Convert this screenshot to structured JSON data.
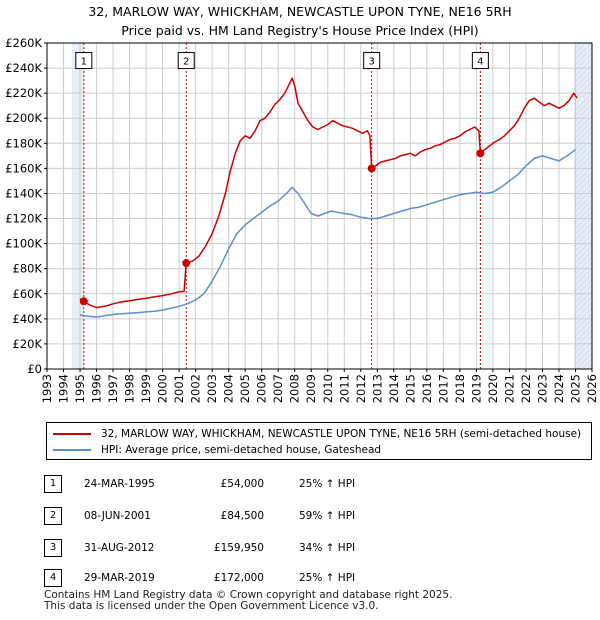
{
  "title_line1": "32, MARLOW WAY, WHICKHAM, NEWCASTLE UPON TYNE, NE16 5RH",
  "title_line2": "Price paid vs. HM Land Registry's House Price Index (HPI)",
  "colors": {
    "property": "#cc0000",
    "hpi": "#5b8fcf",
    "shade": "#e8eef8",
    "grid": "#cccccc"
  },
  "chart_data": {
    "type": "line",
    "xlim": [
      1993,
      2026
    ],
    "ylim": [
      0,
      260000
    ],
    "x_ticks": [
      "1993",
      "1994",
      "1995",
      "1996",
      "1997",
      "1998",
      "1999",
      "2000",
      "2001",
      "2002",
      "2003",
      "2004",
      "2005",
      "2006",
      "2007",
      "2008",
      "2009",
      "2010",
      "2011",
      "2012",
      "2013",
      "2014",
      "2015",
      "2016",
      "2017",
      "2018",
      "2019",
      "2020",
      "2021",
      "2022",
      "2023",
      "2024",
      "2025",
      "2026"
    ],
    "y_ticks": [
      {
        "value": 0,
        "label": "£0"
      },
      {
        "value": 20000,
        "label": "£20K"
      },
      {
        "value": 40000,
        "label": "£40K"
      },
      {
        "value": 60000,
        "label": "£60K"
      },
      {
        "value": 80000,
        "label": "£80K"
      },
      {
        "value": 100000,
        "label": "£100K"
      },
      {
        "value": 120000,
        "label": "£120K"
      },
      {
        "value": 140000,
        "label": "£140K"
      },
      {
        "value": 160000,
        "label": "£160K"
      },
      {
        "value": 180000,
        "label": "£180K"
      },
      {
        "value": 200000,
        "label": "£200K"
      },
      {
        "value": 220000,
        "label": "£220K"
      },
      {
        "value": 240000,
        "label": "£240K"
      },
      {
        "value": 260000,
        "label": "£260K"
      }
    ],
    "series": [
      {
        "name": "32, MARLOW WAY, WHICKHAM, NEWCASTLE UPON TYNE, NE16 5RH (semi-detached house)",
        "color": "#cc0000",
        "points": [
          [
            1995.0,
            56000
          ],
          [
            1995.23,
            54000
          ],
          [
            1995.6,
            51000
          ],
          [
            1996.0,
            49000
          ],
          [
            1996.5,
            50000
          ],
          [
            1997.0,
            52000
          ],
          [
            1997.5,
            53500
          ],
          [
            1998.0,
            54500
          ],
          [
            1998.5,
            55500
          ],
          [
            1999.0,
            56500
          ],
          [
            1999.5,
            57500
          ],
          [
            2000.0,
            58500
          ],
          [
            2000.5,
            60000
          ],
          [
            2001.0,
            61500
          ],
          [
            2001.3,
            62000
          ],
          [
            2001.43,
            84500
          ],
          [
            2001.8,
            86000
          ],
          [
            2002.2,
            90000
          ],
          [
            2002.6,
            98000
          ],
          [
            2003.0,
            108000
          ],
          [
            2003.4,
            122000
          ],
          [
            2003.8,
            140000
          ],
          [
            2004.1,
            158000
          ],
          [
            2004.4,
            172000
          ],
          [
            2004.7,
            182000
          ],
          [
            2005.0,
            186000
          ],
          [
            2005.3,
            184000
          ],
          [
            2005.6,
            190000
          ],
          [
            2005.9,
            198000
          ],
          [
            2006.2,
            200000
          ],
          [
            2006.5,
            205000
          ],
          [
            2006.8,
            211000
          ],
          [
            2007.1,
            215000
          ],
          [
            2007.4,
            220000
          ],
          [
            2007.7,
            228000
          ],
          [
            2007.85,
            232000
          ],
          [
            2008.0,
            226000
          ],
          [
            2008.2,
            212000
          ],
          [
            2008.5,
            205000
          ],
          [
            2008.8,
            198000
          ],
          [
            2009.1,
            193000
          ],
          [
            2009.4,
            191000
          ],
          [
            2009.7,
            193000
          ],
          [
            2010.0,
            195000
          ],
          [
            2010.3,
            198000
          ],
          [
            2010.6,
            196000
          ],
          [
            2010.9,
            194000
          ],
          [
            2011.2,
            193000
          ],
          [
            2011.5,
            192000
          ],
          [
            2011.8,
            190000
          ],
          [
            2012.1,
            188000
          ],
          [
            2012.4,
            190000
          ],
          [
            2012.55,
            186000
          ],
          [
            2012.66,
            159950
          ],
          [
            2012.9,
            162000
          ],
          [
            2013.2,
            165000
          ],
          [
            2013.5,
            166000
          ],
          [
            2013.8,
            167000
          ],
          [
            2014.1,
            168000
          ],
          [
            2014.4,
            170000
          ],
          [
            2014.7,
            171000
          ],
          [
            2015.0,
            172000
          ],
          [
            2015.3,
            170000
          ],
          [
            2015.6,
            173000
          ],
          [
            2015.9,
            175000
          ],
          [
            2016.2,
            176000
          ],
          [
            2016.5,
            178000
          ],
          [
            2016.8,
            179000
          ],
          [
            2017.1,
            181000
          ],
          [
            2017.4,
            183000
          ],
          [
            2017.7,
            184000
          ],
          [
            2018.0,
            186000
          ],
          [
            2018.3,
            189000
          ],
          [
            2018.6,
            191000
          ],
          [
            2018.9,
            193000
          ],
          [
            2019.15,
            190000
          ],
          [
            2019.24,
            172000
          ],
          [
            2019.5,
            175000
          ],
          [
            2019.8,
            178000
          ],
          [
            2020.1,
            181000
          ],
          [
            2020.4,
            183000
          ],
          [
            2020.7,
            186000
          ],
          [
            2021.0,
            190000
          ],
          [
            2021.3,
            194000
          ],
          [
            2021.6,
            200000
          ],
          [
            2021.9,
            208000
          ],
          [
            2022.2,
            214000
          ],
          [
            2022.5,
            216000
          ],
          [
            2022.8,
            213000
          ],
          [
            2023.1,
            210000
          ],
          [
            2023.4,
            212000
          ],
          [
            2023.7,
            210000
          ],
          [
            2024.0,
            208000
          ],
          [
            2024.3,
            210000
          ],
          [
            2024.6,
            214000
          ],
          [
            2024.9,
            220000
          ],
          [
            2025.1,
            216000
          ]
        ]
      },
      {
        "name": "HPI: Average price, semi-detached house, Gateshead",
        "color": "#5b8fcf",
        "points": [
          [
            1995.0,
            43000
          ],
          [
            1995.5,
            42000
          ],
          [
            1996.0,
            41500
          ],
          [
            1996.5,
            42500
          ],
          [
            1997.0,
            43500
          ],
          [
            1997.5,
            44000
          ],
          [
            1998.0,
            44500
          ],
          [
            1998.5,
            45000
          ],
          [
            1999.0,
            45500
          ],
          [
            1999.5,
            46000
          ],
          [
            2000.0,
            47000
          ],
          [
            2000.5,
            48500
          ],
          [
            2001.0,
            50000
          ],
          [
            2001.5,
            52000
          ],
          [
            2002.0,
            55000
          ],
          [
            2002.5,
            60000
          ],
          [
            2003.0,
            70000
          ],
          [
            2003.5,
            82000
          ],
          [
            2004.0,
            96000
          ],
          [
            2004.5,
            108000
          ],
          [
            2005.0,
            115000
          ],
          [
            2005.5,
            120000
          ],
          [
            2006.0,
            125000
          ],
          [
            2006.5,
            130000
          ],
          [
            2007.0,
            134000
          ],
          [
            2007.5,
            140000
          ],
          [
            2007.85,
            145000
          ],
          [
            2008.2,
            140000
          ],
          [
            2008.6,
            132000
          ],
          [
            2009.0,
            124000
          ],
          [
            2009.4,
            122000
          ],
          [
            2009.8,
            124000
          ],
          [
            2010.2,
            126000
          ],
          [
            2010.6,
            125000
          ],
          [
            2011.0,
            124000
          ],
          [
            2011.5,
            123000
          ],
          [
            2012.0,
            121000
          ],
          [
            2012.5,
            120000
          ],
          [
            2013.0,
            120000
          ],
          [
            2013.5,
            122000
          ],
          [
            2014.0,
            124000
          ],
          [
            2014.5,
            126000
          ],
          [
            2015.0,
            128000
          ],
          [
            2015.5,
            129000
          ],
          [
            2016.0,
            131000
          ],
          [
            2016.5,
            133000
          ],
          [
            2017.0,
            135000
          ],
          [
            2017.5,
            137000
          ],
          [
            2018.0,
            139000
          ],
          [
            2018.5,
            140000
          ],
          [
            2019.0,
            141000
          ],
          [
            2019.5,
            140000
          ],
          [
            2020.0,
            141000
          ],
          [
            2020.5,
            145000
          ],
          [
            2021.0,
            150000
          ],
          [
            2021.5,
            155000
          ],
          [
            2022.0,
            162000
          ],
          [
            2022.5,
            168000
          ],
          [
            2023.0,
            170000
          ],
          [
            2023.5,
            168000
          ],
          [
            2024.0,
            166000
          ],
          [
            2024.5,
            170000
          ],
          [
            2025.0,
            175000
          ]
        ]
      }
    ],
    "sales": [
      {
        "num": "1",
        "x": 1995.23,
        "y": 54000
      },
      {
        "num": "2",
        "x": 2001.43,
        "y": 84500
      },
      {
        "num": "3",
        "x": 2012.66,
        "y": 159950
      },
      {
        "num": "4",
        "x": 2019.24,
        "y": 172000
      }
    ],
    "shaded_ranges": [
      [
        1994.5,
        1995.23
      ],
      [
        2024.92,
        2026
      ]
    ],
    "marker_label_value": 246000
  },
  "legend": {
    "property_label": "32, MARLOW WAY, WHICKHAM, NEWCASTLE UPON TYNE, NE16 5RH (semi-detached house)",
    "hpi_label": "HPI: Average price, semi-detached house, Gateshead"
  },
  "sales_table": [
    {
      "num": "1",
      "date": "24-MAR-1995",
      "price": "£54,000",
      "hpi": "25% ↑ HPI"
    },
    {
      "num": "2",
      "date": "08-JUN-2001",
      "price": "£84,500",
      "hpi": "59% ↑ HPI"
    },
    {
      "num": "3",
      "date": "31-AUG-2012",
      "price": "£159,950",
      "hpi": "34% ↑ HPI"
    },
    {
      "num": "4",
      "date": "29-MAR-2019",
      "price": "£172,000",
      "hpi": "25% ↑ HPI"
    }
  ],
  "footer": {
    "line1": "Contains HM Land Registry data © Crown copyright and database right 2025.",
    "line2": "This data is licensed under the Open Government Licence v3.0."
  }
}
